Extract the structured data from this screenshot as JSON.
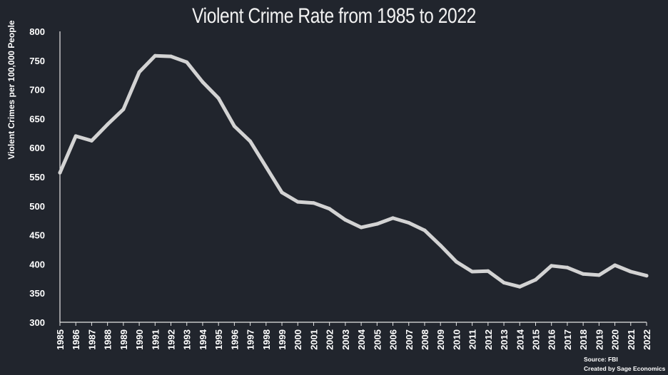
{
  "chart_data": {
    "type": "line",
    "title": "Violent Crime Rate from 1985 to 2022",
    "ylabel": "Violent Crimes per 100,000 People",
    "xlabel": "",
    "ylim": [
      300,
      800
    ],
    "yticks": [
      300,
      350,
      400,
      450,
      500,
      550,
      600,
      650,
      700,
      750,
      800
    ],
    "grid": false,
    "x": [
      "1985",
      "1986",
      "1987",
      "1988",
      "1989",
      "1990",
      "1991",
      "1992",
      "1993",
      "1994",
      "1995",
      "1996",
      "1997",
      "1998",
      "1999",
      "2000",
      "2001",
      "2002",
      "2003",
      "2004",
      "2005",
      "2006",
      "2007",
      "2008",
      "2009",
      "2010",
      "2011",
      "2012",
      "2013",
      "2014",
      "2015",
      "2016",
      "2017",
      "2018",
      "2019",
      "2020",
      "2021",
      "2022"
    ],
    "series": [
      {
        "values": [
          557,
          620,
          612,
          640,
          666,
          730,
          758,
          757,
          747,
          713,
          685,
          637,
          611,
          567,
          523,
          507,
          505,
          495,
          476,
          463,
          469,
          479,
          471,
          458,
          432,
          404,
          387,
          388,
          368,
          361,
          373,
          397,
          394,
          383,
          381,
          398,
          387,
          380
        ]
      }
    ],
    "line_color": "#d3d3d3",
    "source": "Source: FBI",
    "credit": "Created by Sage Economics"
  }
}
